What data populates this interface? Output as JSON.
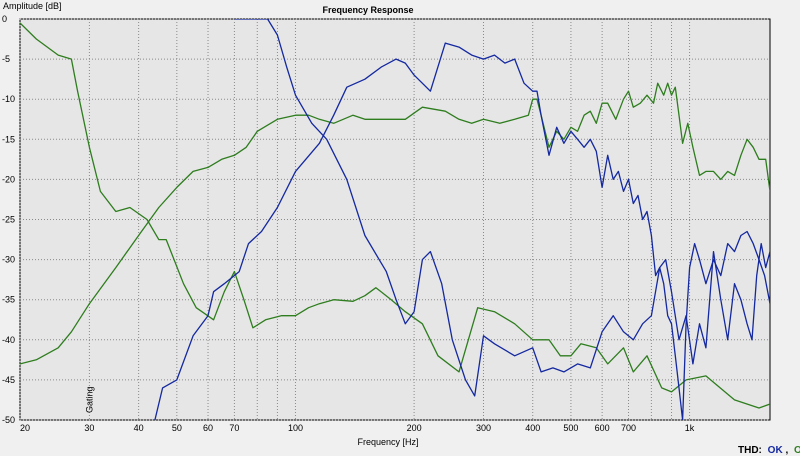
{
  "chart_data": {
    "type": "line",
    "title": "Frequency Response",
    "ylabel": "Amplitude [dB]",
    "xlabel": "Frequency [Hz]",
    "x_scale": "log",
    "xlim": [
      20,
      1600
    ],
    "ylim": [
      -50,
      0
    ],
    "grid": true,
    "y_ticks": [
      "0",
      "-5",
      "-10",
      "-15",
      "-20",
      "-25",
      "-30",
      "-35",
      "-40",
      "-45",
      "-50"
    ],
    "x_ticks": [
      {
        "value": 20,
        "label": "20"
      },
      {
        "value": 30,
        "label": "30"
      },
      {
        "value": 40,
        "label": "40"
      },
      {
        "value": 50,
        "label": "50"
      },
      {
        "value": 60,
        "label": "60"
      },
      {
        "value": 70,
        "label": "70"
      },
      {
        "value": 100,
        "label": "100"
      },
      {
        "value": 200,
        "label": "200"
      },
      {
        "value": 300,
        "label": "300"
      },
      {
        "value": 400,
        "label": "400"
      },
      {
        "value": 500,
        "label": "500"
      },
      {
        "value": 600,
        "label": "600"
      },
      {
        "value": 700,
        "label": "700"
      },
      {
        "value": 1000,
        "label": "1k"
      }
    ],
    "x_grid_values": [
      20,
      30,
      40,
      50,
      60,
      70,
      80,
      90,
      100,
      200,
      300,
      400,
      500,
      600,
      700,
      800,
      900,
      1000,
      2000
    ],
    "marker_text": "Gating",
    "marker_freq": 30,
    "series": [
      {
        "color": "#2e7d1e",
        "points": [
          [
            20,
            -0.5
          ],
          [
            22,
            -2.5
          ],
          [
            25,
            -4.5
          ],
          [
            27,
            -5
          ],
          [
            28,
            -9
          ],
          [
            30,
            -16
          ],
          [
            32,
            -21.5
          ],
          [
            35,
            -24
          ],
          [
            38,
            -23.5
          ],
          [
            42,
            -25
          ],
          [
            45,
            -27.5
          ],
          [
            47,
            -27.5
          ],
          [
            52,
            -33
          ],
          [
            56,
            -36
          ],
          [
            62,
            -37.5
          ],
          [
            66,
            -34
          ],
          [
            70,
            -31.5
          ],
          [
            74,
            -35
          ],
          [
            78,
            -38.5
          ],
          [
            84,
            -37.5
          ],
          [
            92,
            -37
          ],
          [
            100,
            -37
          ],
          [
            108,
            -36
          ],
          [
            115,
            -35.5
          ],
          [
            125,
            -35
          ],
          [
            140,
            -35.2
          ],
          [
            150,
            -34.5
          ],
          [
            160,
            -33.5
          ],
          [
            175,
            -35
          ],
          [
            190,
            -36.5
          ],
          [
            210,
            -38
          ],
          [
            230,
            -42
          ],
          [
            260,
            -44
          ],
          [
            290,
            -36
          ],
          [
            320,
            -36.5
          ],
          [
            360,
            -38
          ],
          [
            400,
            -40
          ],
          [
            440,
            -40
          ],
          [
            470,
            -42
          ],
          [
            500,
            -42
          ],
          [
            530,
            -40.5
          ],
          [
            580,
            -41
          ],
          [
            620,
            -43
          ],
          [
            680,
            -41
          ],
          [
            720,
            -44
          ],
          [
            780,
            -42
          ],
          [
            850,
            -46
          ],
          [
            900,
            -46.5
          ],
          [
            980,
            -45
          ],
          [
            1100,
            -44.5
          ],
          [
            1300,
            -47.5
          ],
          [
            1500,
            -48.5
          ],
          [
            1600,
            -48
          ]
        ]
      },
      {
        "color": "#2e7d1e",
        "points": [
          [
            20,
            -43
          ],
          [
            22,
            -42.5
          ],
          [
            25,
            -41
          ],
          [
            27,
            -39
          ],
          [
            30,
            -35.5
          ],
          [
            35,
            -31
          ],
          [
            40,
            -27
          ],
          [
            45,
            -23.5
          ],
          [
            50,
            -21
          ],
          [
            55,
            -19
          ],
          [
            60,
            -18.5
          ],
          [
            65,
            -17.5
          ],
          [
            70,
            -17
          ],
          [
            75,
            -16
          ],
          [
            80,
            -14
          ],
          [
            90,
            -12.5
          ],
          [
            100,
            -12
          ],
          [
            108,
            -12
          ],
          [
            115,
            -12.5
          ],
          [
            125,
            -13
          ],
          [
            140,
            -12
          ],
          [
            150,
            -12.5
          ],
          [
            160,
            -12.5
          ],
          [
            175,
            -12.5
          ],
          [
            190,
            -12.5
          ],
          [
            210,
            -11
          ],
          [
            240,
            -11.5
          ],
          [
            260,
            -12.5
          ],
          [
            280,
            -13
          ],
          [
            300,
            -12.5
          ],
          [
            330,
            -13
          ],
          [
            360,
            -12.5
          ],
          [
            390,
            -12
          ],
          [
            400,
            -10
          ],
          [
            410,
            -10
          ],
          [
            420,
            -12
          ],
          [
            440,
            -16
          ],
          [
            460,
            -14
          ],
          [
            480,
            -15
          ],
          [
            500,
            -13.5
          ],
          [
            520,
            -14
          ],
          [
            540,
            -12
          ],
          [
            560,
            -11.5
          ],
          [
            580,
            -13
          ],
          [
            600,
            -10.5
          ],
          [
            620,
            -10.5
          ],
          [
            650,
            -12.5
          ],
          [
            680,
            -10
          ],
          [
            700,
            -9
          ],
          [
            720,
            -11
          ],
          [
            750,
            -10.5
          ],
          [
            780,
            -9.5
          ],
          [
            810,
            -10.5
          ],
          [
            830,
            -8
          ],
          [
            860,
            -9.5
          ],
          [
            880,
            -8
          ],
          [
            900,
            -9.5
          ],
          [
            920,
            -8.5
          ],
          [
            940,
            -12
          ],
          [
            960,
            -15.5
          ],
          [
            990,
            -13
          ],
          [
            1020,
            -16
          ],
          [
            1060,
            -19.5
          ],
          [
            1100,
            -19
          ],
          [
            1150,
            -19
          ],
          [
            1200,
            -20
          ],
          [
            1250,
            -19
          ],
          [
            1300,
            -19.5
          ],
          [
            1350,
            -17
          ],
          [
            1400,
            -15
          ],
          [
            1450,
            -16
          ],
          [
            1500,
            -17.5
          ],
          [
            1560,
            -17.5
          ],
          [
            1600,
            -21.5
          ]
        ]
      },
      {
        "color": "#1428a0",
        "points": [
          [
            44,
            -50
          ],
          [
            46,
            -46
          ],
          [
            50,
            -45
          ],
          [
            55,
            -39.5
          ],
          [
            60,
            -37
          ],
          [
            62,
            -34
          ],
          [
            66,
            -33
          ],
          [
            72,
            -31.5
          ],
          [
            76,
            -28
          ],
          [
            82,
            -26.5
          ],
          [
            90,
            -23.5
          ],
          [
            100,
            -19
          ],
          [
            115,
            -15.5
          ],
          [
            125,
            -12
          ],
          [
            135,
            -8.5
          ],
          [
            150,
            -7.5
          ],
          [
            165,
            -6
          ],
          [
            180,
            -5
          ],
          [
            190,
            -5.5
          ],
          [
            200,
            -7
          ],
          [
            220,
            -9
          ],
          [
            240,
            -3
          ],
          [
            260,
            -3.5
          ],
          [
            280,
            -4.5
          ],
          [
            300,
            -5
          ],
          [
            320,
            -4.5
          ],
          [
            340,
            -5.5
          ],
          [
            360,
            -5
          ],
          [
            380,
            -8
          ],
          [
            400,
            -9
          ],
          [
            410,
            -9
          ],
          [
            420,
            -12
          ],
          [
            440,
            -17
          ],
          [
            460,
            -13.5
          ],
          [
            480,
            -15.5
          ],
          [
            500,
            -14
          ],
          [
            520,
            -15
          ],
          [
            540,
            -16
          ],
          [
            560,
            -15
          ],
          [
            580,
            -16.5
          ],
          [
            600,
            -21
          ],
          [
            620,
            -17
          ],
          [
            640,
            -20
          ],
          [
            660,
            -19
          ],
          [
            680,
            -21.5
          ],
          [
            700,
            -20
          ],
          [
            720,
            -23
          ],
          [
            740,
            -22
          ],
          [
            760,
            -25
          ],
          [
            780,
            -24
          ],
          [
            800,
            -27
          ],
          [
            820,
            -32
          ],
          [
            840,
            -31
          ],
          [
            860,
            -33
          ],
          [
            880,
            -37
          ],
          [
            900,
            -38
          ],
          [
            920,
            -42
          ],
          [
            940,
            -46
          ],
          [
            960,
            -50
          ],
          [
            980,
            -38
          ],
          [
            1000,
            -31
          ],
          [
            1030,
            -28
          ],
          [
            1060,
            -30
          ],
          [
            1100,
            -33
          ],
          [
            1150,
            -30
          ],
          [
            1200,
            -32
          ],
          [
            1250,
            -28
          ],
          [
            1300,
            -29
          ],
          [
            1350,
            -27
          ],
          [
            1400,
            -26.5
          ],
          [
            1450,
            -28
          ],
          [
            1500,
            -30
          ],
          [
            1550,
            -32
          ],
          [
            1600,
            -35.5
          ]
        ]
      },
      {
        "color": "#1428a0",
        "points": [
          [
            70,
            0
          ],
          [
            80,
            0
          ],
          [
            85,
            0
          ],
          [
            90,
            -2
          ],
          [
            95,
            -6
          ],
          [
            100,
            -9.5
          ],
          [
            110,
            -13
          ],
          [
            120,
            -15
          ],
          [
            135,
            -20
          ],
          [
            150,
            -27
          ],
          [
            170,
            -31.5
          ],
          [
            180,
            -35
          ],
          [
            190,
            -38
          ],
          [
            200,
            -36.5
          ],
          [
            210,
            -30
          ],
          [
            220,
            -29
          ],
          [
            235,
            -33
          ],
          [
            250,
            -40
          ],
          [
            270,
            -45
          ],
          [
            285,
            -47
          ],
          [
            300,
            -39.5
          ],
          [
            320,
            -40.5
          ],
          [
            360,
            -42
          ],
          [
            400,
            -41
          ],
          [
            420,
            -44
          ],
          [
            450,
            -43.5
          ],
          [
            480,
            -44
          ],
          [
            520,
            -43
          ],
          [
            560,
            -43.5
          ],
          [
            600,
            -39
          ],
          [
            640,
            -37
          ],
          [
            680,
            -39
          ],
          [
            720,
            -40
          ],
          [
            760,
            -38
          ],
          [
            800,
            -37
          ],
          [
            840,
            -31
          ],
          [
            870,
            -30
          ],
          [
            900,
            -34
          ],
          [
            940,
            -40
          ],
          [
            980,
            -37
          ],
          [
            1020,
            -43
          ],
          [
            1060,
            -38
          ],
          [
            1100,
            -41
          ],
          [
            1150,
            -29
          ],
          [
            1200,
            -35
          ],
          [
            1250,
            -40
          ],
          [
            1300,
            -33
          ],
          [
            1350,
            -35
          ],
          [
            1400,
            -38
          ],
          [
            1440,
            -40
          ],
          [
            1480,
            -32
          ],
          [
            1520,
            -28
          ],
          [
            1560,
            -31
          ],
          [
            1600,
            -29
          ]
        ]
      }
    ]
  },
  "ui": {
    "thd_label": "THD:",
    "thd_ok1": "OK",
    "thd_sep": ",",
    "thd_ok2": "OK",
    "thd_ok1_color": "#1428a0",
    "thd_ok2_color": "#2e7d1e"
  }
}
